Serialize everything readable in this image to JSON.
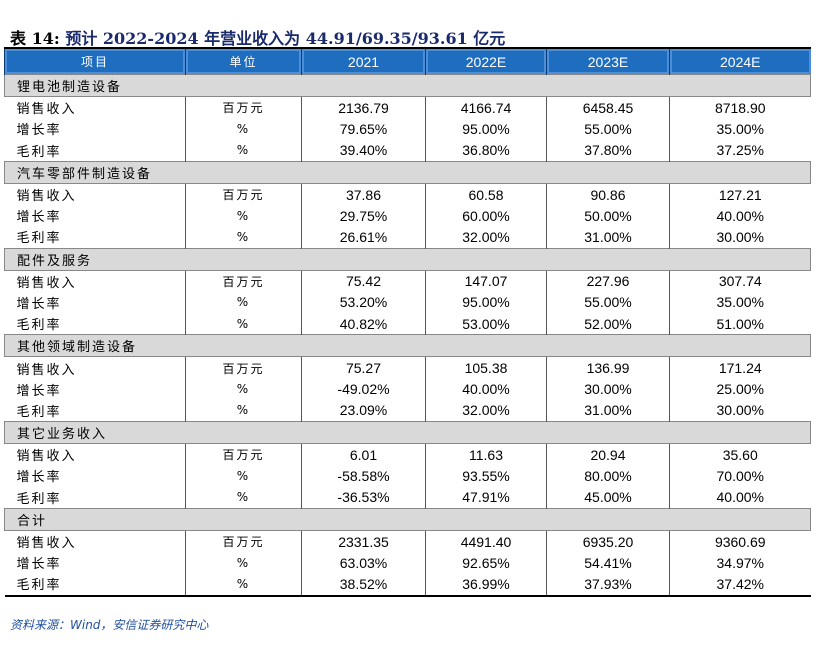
{
  "title": {
    "label": "表 14:",
    "text": "预计 2022-2024 年营业收入为 44.91/69.35/93.61 亿元"
  },
  "header": [
    "项目",
    "单位",
    "2021",
    "2022E",
    "2023E",
    "2024E"
  ],
  "sections": [
    {
      "name": "锂电池制造设备",
      "rows": [
        [
          "销售收入",
          "百万元",
          "2136.79",
          "4166.74",
          "6458.45",
          "8718.90"
        ],
        [
          "增长率",
          "%",
          "79.65%",
          "95.00%",
          "55.00%",
          "35.00%"
        ],
        [
          "毛利率",
          "%",
          "39.40%",
          "36.80%",
          "37.80%",
          "37.25%"
        ]
      ]
    },
    {
      "name": "汽车零部件制造设备",
      "rows": [
        [
          "销售收入",
          "百万元",
          "37.86",
          "60.58",
          "90.86",
          "127.21"
        ],
        [
          "增长率",
          "%",
          "29.75%",
          "60.00%",
          "50.00%",
          "40.00%"
        ],
        [
          "毛利率",
          "%",
          "26.61%",
          "32.00%",
          "31.00%",
          "30.00%"
        ]
      ]
    },
    {
      "name": "配件及服务",
      "rows": [
        [
          "销售收入",
          "百万元",
          "75.42",
          "147.07",
          "227.96",
          "307.74"
        ],
        [
          "增长率",
          "%",
          "53.20%",
          "95.00%",
          "55.00%",
          "35.00%"
        ],
        [
          "毛利率",
          "%",
          "40.82%",
          "53.00%",
          "52.00%",
          "51.00%"
        ]
      ]
    },
    {
      "name": "其他领域制造设备",
      "rows": [
        [
          "销售收入",
          "百万元",
          "75.27",
          "105.38",
          "136.99",
          "171.24"
        ],
        [
          "增长率",
          "%",
          "-49.02%",
          "40.00%",
          "30.00%",
          "25.00%"
        ],
        [
          "毛利率",
          "%",
          "23.09%",
          "32.00%",
          "31.00%",
          "30.00%"
        ]
      ]
    },
    {
      "name": "其它业务收入",
      "rows": [
        [
          "销售收入",
          "百万元",
          "6.01",
          "11.63",
          "20.94",
          "35.60"
        ],
        [
          "增长率",
          "%",
          "-58.58%",
          "93.55%",
          "80.00%",
          "70.00%"
        ],
        [
          "毛利率",
          "%",
          "-36.53%",
          "47.91%",
          "45.00%",
          "40.00%"
        ]
      ]
    },
    {
      "name": "合计",
      "rows": [
        [
          "销售收入",
          "百万元",
          "2331.35",
          "4491.40",
          "6935.20",
          "9360.69"
        ],
        [
          "增长率",
          "%",
          "63.03%",
          "92.65%",
          "54.41%",
          "34.97%"
        ],
        [
          "毛利率",
          "%",
          "38.52%",
          "36.99%",
          "37.93%",
          "37.42%"
        ]
      ]
    }
  ],
  "source": "资料来源：Wind，安信证券研究中心"
}
